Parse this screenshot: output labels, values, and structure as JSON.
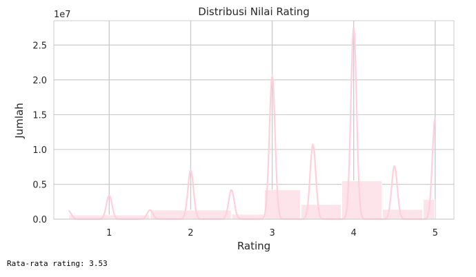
{
  "output_text": "Rata-rata rating: 3.53",
  "chart_data": {
    "type": "bar",
    "title": "Distribusi Nilai Rating",
    "xlabel": "Rating",
    "ylabel": "Jumlah",
    "y_scale_label": "1e7",
    "xlim": [
      0.32,
      5.23
    ],
    "ylim": [
      0,
      2.85
    ],
    "grid": true,
    "x_ticks": [
      1,
      2,
      3,
      4,
      5
    ],
    "y_ticks": [
      0.0,
      0.5,
      1.0,
      1.5,
      2.0,
      2.5
    ],
    "x_tick_labels": [
      "1",
      "2",
      "3",
      "4",
      "5"
    ],
    "y_tick_labels": [
      "0.0",
      "0.5",
      "1.0",
      "1.5",
      "2.0",
      "2.5"
    ],
    "bar_color": "#fde3ea",
    "kde_color": "#ffd0dc",
    "grid_color": "#cccccc",
    "bins": [
      {
        "x0": 0.5,
        "x1": 1.5,
        "value": 0.06
      },
      {
        "x0": 1.5,
        "x1": 2.5,
        "value": 0.13
      },
      {
        "x0": 2.5,
        "x1": 2.9,
        "value": 0.07
      },
      {
        "x0": 2.9,
        "x1": 3.35,
        "value": 0.42
      },
      {
        "x0": 3.35,
        "x1": 3.85,
        "value": 0.21
      },
      {
        "x0": 3.85,
        "x1": 4.35,
        "value": 0.55
      },
      {
        "x0": 4.35,
        "x1": 4.85,
        "value": 0.14
      },
      {
        "x0": 4.85,
        "x1": 5.0,
        "value": 0.28
      }
    ],
    "kde_peaks": [
      {
        "x": 0.5,
        "y": 0.12
      },
      {
        "x": 1.0,
        "y": 0.34
      },
      {
        "x": 1.5,
        "y": 0.13
      },
      {
        "x": 2.0,
        "y": 0.7
      },
      {
        "x": 2.5,
        "y": 0.42
      },
      {
        "x": 3.0,
        "y": 2.05
      },
      {
        "x": 3.5,
        "y": 1.07
      },
      {
        "x": 4.0,
        "y": 2.75
      },
      {
        "x": 4.5,
        "y": 0.76
      },
      {
        "x": 5.0,
        "y": 1.45
      }
    ],
    "kde_peak_width": 0.035
  }
}
